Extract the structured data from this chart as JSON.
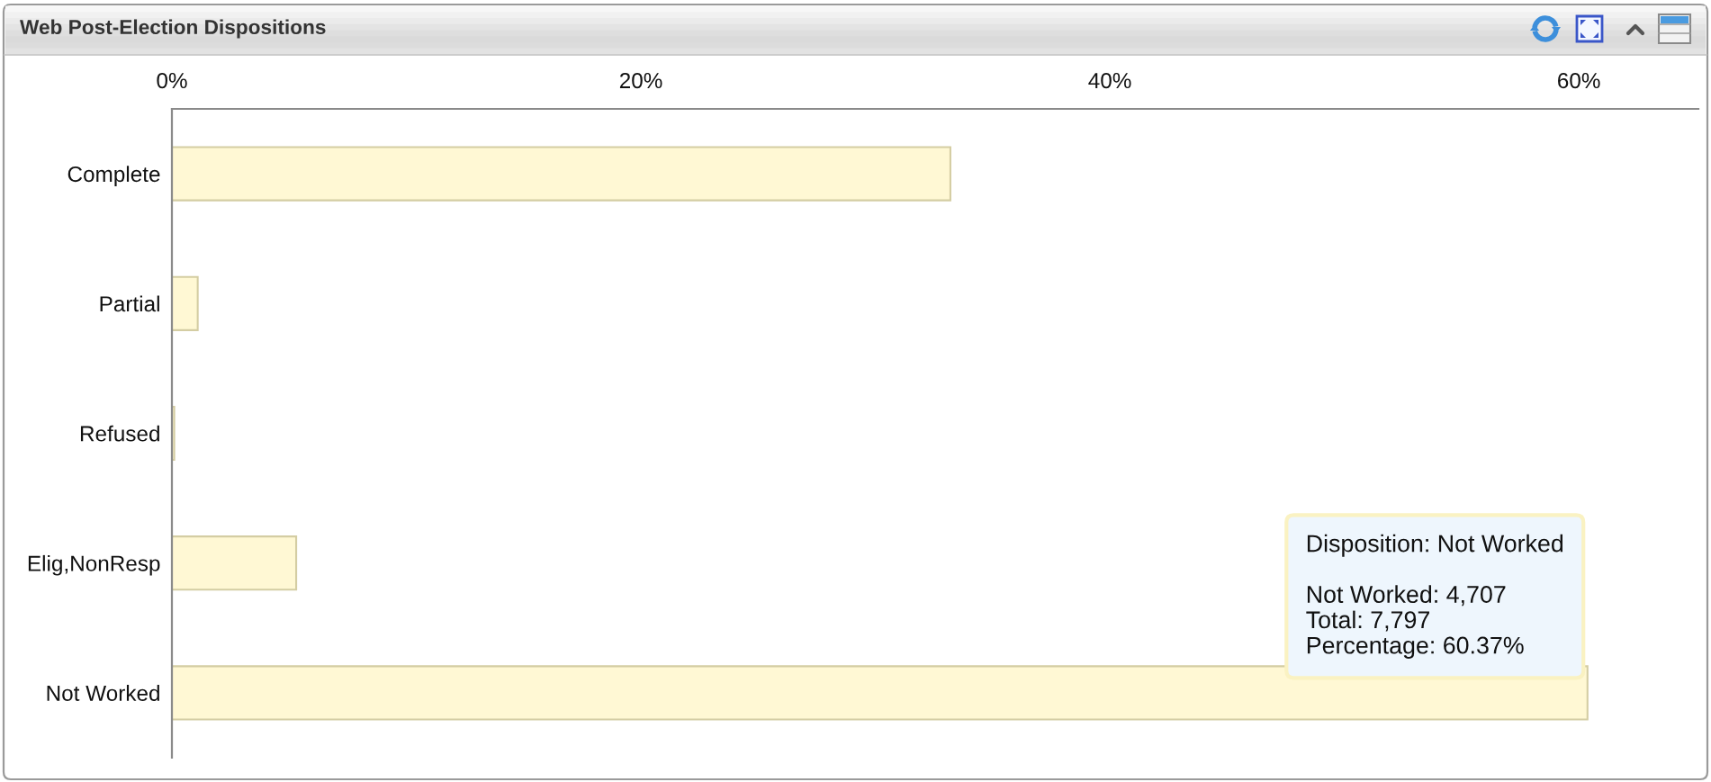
{
  "chart_data": {
    "type": "bar",
    "orientation": "horizontal",
    "title": "Web Post-Election Dispositions",
    "categories": [
      "Complete",
      "Partial",
      "Refused",
      "Elig,NonResp",
      "Not Worked"
    ],
    "values": [
      33.2,
      1.1,
      0.1,
      5.3,
      60.37
    ],
    "color": "#fff8d4",
    "xlim": [
      0,
      65.1
    ],
    "xticks": [
      {
        "value": 0,
        "label": "0%"
      },
      {
        "value": 20,
        "label": "20%"
      },
      {
        "value": 40,
        "label": "40%"
      },
      {
        "value": 60,
        "label": "60%"
      }
    ],
    "annotations": [
      {
        "text": "Disposition: Not Worked\n\nNot Worked: 4,707\nTotal: 7,797\nPercentage: 60.37%",
        "x": 60.37,
        "y": "Not Worked"
      }
    ]
  }
}
